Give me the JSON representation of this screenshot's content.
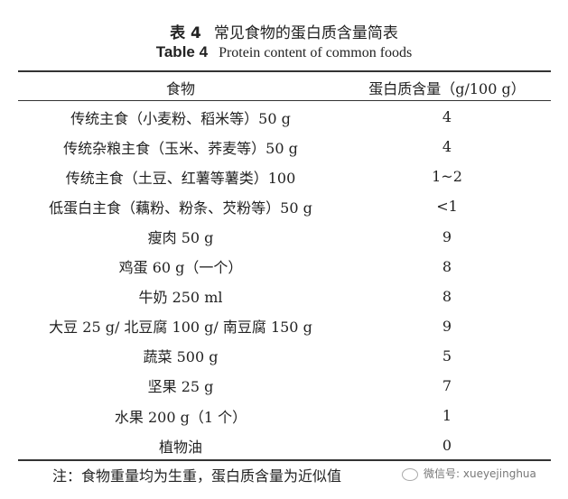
{
  "title_cn": {
    "label": "表 4",
    "text": "常见食物的蛋白质含量简表"
  },
  "title_en": {
    "label": "Table 4",
    "text": "Protein content of common foods"
  },
  "table": {
    "headers": [
      "食物",
      "蛋白质含量（g/100 g）"
    ],
    "rows": [
      [
        "传统主食（小麦粉、稻米等）50 g",
        "4"
      ],
      [
        "传统杂粮主食（玉米、荞麦等）50 g",
        "4"
      ],
      [
        "传统主食（土豆、红薯等薯类）100",
        "1~2"
      ],
      [
        "低蛋白主食（藕粉、粉条、芡粉等）50 g",
        "<1"
      ],
      [
        "瘦肉 50 g",
        "9"
      ],
      [
        "鸡蛋 60 g（一个）",
        "8"
      ],
      [
        "牛奶 250 ml",
        "8"
      ],
      [
        "大豆 25 g/ 北豆腐 100 g/ 南豆腐 150 g",
        "9"
      ],
      [
        "蔬菜 500 g",
        "5"
      ],
      [
        "坚果 25 g",
        "7"
      ],
      [
        "水果 200 g（1 个）",
        "1"
      ],
      [
        "植物油",
        "0"
      ]
    ]
  },
  "note": "注：食物重量均为生重，蛋白质含量为近似值",
  "watermark": "微信号: xueyejinghua"
}
